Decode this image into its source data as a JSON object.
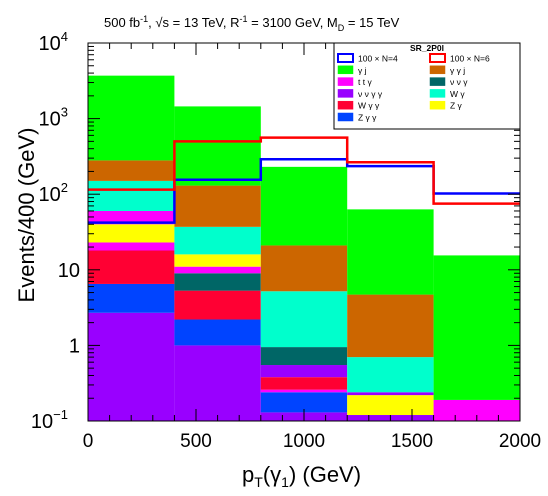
{
  "chart_data": {
    "type": "bar",
    "title_parts": {
      "lumi": "500 fb",
      "lumi_sup": "-1",
      "sqrt": "√s = 13 TeV, R",
      "r_sup": "-1",
      "mid": " = 3100 GeV, M",
      "m_sub": "D",
      "end": " = 15 TeV"
    },
    "xlabel_main": "p",
    "xlabel_sub1": "T",
    "xlabel_mid": "(γ",
    "xlabel_sub2": "1",
    "xlabel_end": ") (GeV)",
    "ylabel": "Events/400 (GeV)",
    "xlim": [
      0,
      2000
    ],
    "ylim": [
      0.1,
      10000
    ],
    "yscale": "log",
    "x_major_ticks": [
      0,
      500,
      1000,
      1500,
      2000
    ],
    "x_tick_labels": [
      "0",
      "500",
      "1000",
      "1500",
      "2000"
    ],
    "y_tick_labels": [
      {
        "value": 0.1,
        "base": "10",
        "exp": "−1"
      },
      {
        "value": 1,
        "base": "1",
        "exp": ""
      },
      {
        "value": 10,
        "base": "10",
        "exp": ""
      },
      {
        "value": 100,
        "base": "10",
        "exp": "2"
      },
      {
        "value": 1000,
        "base": "10",
        "exp": "3"
      },
      {
        "value": 10000,
        "base": "10",
        "exp": "4"
      }
    ],
    "bin_edges": [
      0,
      400,
      800,
      1200,
      1600,
      2000
    ],
    "legend": {
      "title": "SR_2P0l",
      "position": "top-right",
      "entries": [
        {
          "label": "100 × N=4",
          "kind": "line",
          "color": "#0000ff"
        },
        {
          "label": "100 × N=6",
          "kind": "line",
          "color": "#ff0000"
        },
        {
          "label": "γ j",
          "kind": "fill",
          "color": "#00ff00"
        },
        {
          "label": "γ γ j",
          "kind": "fill",
          "color": "#cc6600"
        },
        {
          "label": "t t γ",
          "kind": "fill",
          "color": "#ff00ff"
        },
        {
          "label": "ν ν γ",
          "kind": "fill",
          "color": "#006666"
        },
        {
          "label": "ν ν γ γ",
          "kind": "fill",
          "color": "#9900ff"
        },
        {
          "label": "W γ",
          "kind": "fill",
          "color": "#00ffcc"
        },
        {
          "label": "W γ γ",
          "kind": "fill",
          "color": "#ff0033"
        },
        {
          "label": "Z γ",
          "kind": "fill",
          "color": "#ffff00"
        },
        {
          "label": "Z γ γ",
          "kind": "fill",
          "color": "#0044ff"
        }
      ]
    },
    "stack_segments": [
      {
        "bin": 0,
        "color": "#9900ff",
        "low": 0.1,
        "high": 2.7
      },
      {
        "bin": 0,
        "color": "#0044ff",
        "low": 2.7,
        "high": 6.5
      },
      {
        "bin": 0,
        "color": "#ff0033",
        "low": 6.5,
        "high": 18
      },
      {
        "bin": 0,
        "color": "#ff00ff",
        "low": 18,
        "high": 23
      },
      {
        "bin": 0,
        "color": "#ffff00",
        "low": 23,
        "high": 40
      },
      {
        "bin": 0,
        "color": "#ff00ff",
        "low": 40,
        "high": 60
      },
      {
        "bin": 0,
        "color": "#00ffcc",
        "low": 60,
        "high": 150
      },
      {
        "bin": 0,
        "color": "#cc6600",
        "low": 150,
        "high": 280
      },
      {
        "bin": 0,
        "color": "#00ff00",
        "low": 280,
        "high": 3700
      },
      {
        "bin": 1,
        "color": "#9900ff",
        "low": 0.1,
        "high": 1.0
      },
      {
        "bin": 1,
        "color": "#0044ff",
        "low": 1.0,
        "high": 2.2
      },
      {
        "bin": 1,
        "color": "#ff0033",
        "low": 2.2,
        "high": 5.3
      },
      {
        "bin": 1,
        "color": "#006666",
        "low": 5.3,
        "high": 9
      },
      {
        "bin": 1,
        "color": "#ff00ff",
        "low": 9,
        "high": 11
      },
      {
        "bin": 1,
        "color": "#ffff00",
        "low": 11,
        "high": 16
      },
      {
        "bin": 1,
        "color": "#00ffcc",
        "low": 16,
        "high": 37
      },
      {
        "bin": 1,
        "color": "#cc6600",
        "low": 37,
        "high": 130
      },
      {
        "bin": 1,
        "color": "#00ff00",
        "low": 130,
        "high": 1450
      },
      {
        "bin": 2,
        "color": "#9900ff",
        "low": 0.1,
        "high": 0.13
      },
      {
        "bin": 2,
        "color": "#0044ff",
        "low": 0.13,
        "high": 0.24
      },
      {
        "bin": 2,
        "color": "#ff00ff",
        "low": 0.24,
        "high": 0.26
      },
      {
        "bin": 2,
        "color": "#ff0033",
        "low": 0.26,
        "high": 0.38
      },
      {
        "bin": 2,
        "color": "#9900ff",
        "low": 0.38,
        "high": 0.55
      },
      {
        "bin": 2,
        "color": "#006666",
        "low": 0.55,
        "high": 0.95
      },
      {
        "bin": 2,
        "color": "#00ffcc",
        "low": 0.95,
        "high": 5.2
      },
      {
        "bin": 2,
        "color": "#cc6600",
        "low": 5.2,
        "high": 21
      },
      {
        "bin": 2,
        "color": "#00ff00",
        "low": 21,
        "high": 230
      },
      {
        "bin": 3,
        "color": "#9900ff",
        "low": 0.1,
        "high": 0.12
      },
      {
        "bin": 3,
        "color": "#ffff00",
        "low": 0.12,
        "high": 0.22
      },
      {
        "bin": 3,
        "color": "#9900ff",
        "low": 0.22,
        "high": 0.24
      },
      {
        "bin": 3,
        "color": "#00ffcc",
        "low": 0.24,
        "high": 0.7
      },
      {
        "bin": 3,
        "color": "#cc6600",
        "low": 0.7,
        "high": 4.7
      },
      {
        "bin": 3,
        "color": "#00ff00",
        "low": 4.7,
        "high": 63
      },
      {
        "bin": 4,
        "color": "#ff00ff",
        "low": 0.1,
        "high": 0.19
      },
      {
        "bin": 4,
        "color": "#00ff00",
        "low": 0.19,
        "high": 15.5
      }
    ],
    "series": [
      {
        "name": "100 × N=4",
        "color": "#0000ff",
        "values": [
          42,
          155,
          290,
          235,
          102
        ]
      },
      {
        "name": "100 × N=6",
        "color": "#ff0000",
        "values": [
          115,
          500,
          560,
          265,
          75
        ]
      }
    ]
  }
}
